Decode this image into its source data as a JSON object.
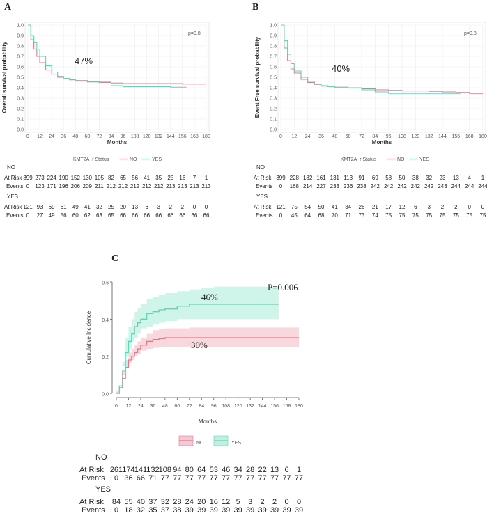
{
  "colors": {
    "no": "#e07b8e",
    "yes": "#5ed6b8",
    "no_fill": "#f6c9d2",
    "yes_fill": "#bff0e1",
    "grid": "#ececec"
  },
  "chart_data": [
    {
      "panel": "A",
      "type": "line",
      "ylabel": "Overall survival probability",
      "xlabel": "Months",
      "pvalue": "p=0.8",
      "annotation": "47%",
      "xlim": [
        0,
        180
      ],
      "ylim": [
        0,
        1
      ],
      "xticks": [
        0,
        12,
        24,
        36,
        48,
        60,
        72,
        84,
        96,
        108,
        120,
        132,
        144,
        156,
        168,
        180
      ],
      "yticks": [
        "0.0",
        "0.1",
        "0.2",
        "0.3",
        "0.4",
        "0.5",
        "0.6",
        "0.7",
        "0.8",
        "0.9",
        "1.0"
      ],
      "legend_title": "KMT2A_r Status",
      "series": [
        {
          "name": "NO",
          "x": [
            0,
            3,
            6,
            9,
            12,
            18,
            24,
            30,
            36,
            42,
            48,
            60,
            72,
            84,
            96,
            108,
            120,
            132,
            144,
            156,
            168,
            180
          ],
          "y": [
            1.0,
            0.86,
            0.77,
            0.7,
            0.64,
            0.57,
            0.53,
            0.5,
            0.485,
            0.475,
            0.465,
            0.455,
            0.45,
            0.445,
            0.44,
            0.44,
            0.44,
            0.44,
            0.44,
            0.435,
            0.435,
            0.435
          ]
        },
        {
          "name": "YES",
          "x": [
            0,
            3,
            6,
            9,
            12,
            18,
            24,
            30,
            36,
            42,
            48,
            60,
            72,
            84,
            96,
            108,
            120,
            132,
            144,
            156,
            160
          ],
          "y": [
            1.0,
            0.9,
            0.83,
            0.77,
            0.7,
            0.61,
            0.55,
            0.51,
            0.49,
            0.48,
            0.47,
            0.46,
            0.455,
            0.42,
            0.41,
            0.41,
            0.41,
            0.41,
            0.405,
            0.405,
            0.405
          ]
        }
      ],
      "risk_table": {
        "groups": [
          {
            "name": "NO",
            "at_risk": [
              "399",
              "273",
              "224",
              "190",
              "152",
              "130",
              "105",
              "82",
              "65",
              "56",
              "41",
              "35",
              "25",
              "16",
              "7",
              "1"
            ],
            "events": [
              "0",
              "123",
              "171",
              "196",
              "206",
              "209",
              "211",
              "212",
              "212",
              "212",
              "212",
              "212",
              "213",
              "213",
              "213",
              "213"
            ]
          },
          {
            "name": "YES",
            "at_risk": [
              "121",
              "93",
              "69",
              "61",
              "49",
              "41",
              "32",
              "25",
              "20",
              "13",
              "6",
              "3",
              "2",
              "2",
              "0",
              "0"
            ],
            "events": [
              "0",
              "27",
              "49",
              "56",
              "60",
              "62",
              "63",
              "65",
              "66",
              "66",
              "66",
              "66",
              "66",
              "66",
              "66",
              "66"
            ]
          }
        ],
        "row_labels": [
          "At Risk",
          "Events"
        ]
      }
    },
    {
      "panel": "B",
      "type": "line",
      "ylabel": "Event Free survival probability",
      "xlabel": "Months",
      "pvalue": "p=0.8",
      "annotation": "40%",
      "xlim": [
        0,
        180
      ],
      "ylim": [
        0,
        1
      ],
      "xticks": [
        0,
        12,
        24,
        36,
        48,
        60,
        72,
        84,
        96,
        108,
        120,
        132,
        144,
        156,
        168,
        180
      ],
      "yticks": [
        "0.0",
        "0.1",
        "0.2",
        "0.3",
        "0.4",
        "0.5",
        "0.6",
        "0.7",
        "0.8",
        "0.9",
        "1.0"
      ],
      "legend_title": "KMT2A_r Status",
      "series": [
        {
          "name": "NO",
          "x": [
            0,
            3,
            6,
            9,
            12,
            18,
            24,
            30,
            36,
            42,
            48,
            60,
            72,
            84,
            96,
            108,
            120,
            132,
            144,
            156,
            168,
            180
          ],
          "y": [
            1.0,
            0.78,
            0.66,
            0.58,
            0.54,
            0.48,
            0.45,
            0.43,
            0.415,
            0.41,
            0.405,
            0.4,
            0.39,
            0.38,
            0.375,
            0.37,
            0.37,
            0.365,
            0.36,
            0.355,
            0.345,
            0.345
          ]
        },
        {
          "name": "YES",
          "x": [
            0,
            3,
            6,
            9,
            12,
            18,
            24,
            30,
            36,
            42,
            48,
            60,
            72,
            84,
            96,
            108,
            120,
            132,
            144,
            156,
            160
          ],
          "y": [
            1.0,
            0.85,
            0.72,
            0.63,
            0.56,
            0.5,
            0.46,
            0.43,
            0.42,
            0.41,
            0.405,
            0.4,
            0.38,
            0.36,
            0.345,
            0.345,
            0.345,
            0.345,
            0.345,
            0.345,
            0.345
          ]
        }
      ],
      "risk_table": {
        "groups": [
          {
            "name": "NO",
            "at_risk": [
              "399",
              "228",
              "182",
              "161",
              "131",
              "113",
              "91",
              "69",
              "58",
              "50",
              "38",
              "32",
              "23",
              "13",
              "4",
              "1"
            ],
            "events": [
              "0",
              "168",
              "214",
              "227",
              "233",
              "236",
              "238",
              "242",
              "242",
              "242",
              "242",
              "242",
              "243",
              "244",
              "244",
              "244"
            ]
          },
          {
            "name": "YES",
            "at_risk": [
              "121",
              "75",
              "54",
              "50",
              "41",
              "34",
              "26",
              "21",
              "17",
              "12",
              "6",
              "3",
              "2",
              "2",
              "0",
              "0"
            ],
            "events": [
              "0",
              "45",
              "64",
              "68",
              "70",
              "71",
              "73",
              "74",
              "75",
              "75",
              "75",
              "75",
              "75",
              "75",
              "75",
              "75"
            ]
          }
        ],
        "row_labels": [
          "At Risk",
          "Events"
        ]
      }
    },
    {
      "panel": "C",
      "type": "line",
      "ylabel": "Cumulative Incidence",
      "xlabel": "Months",
      "pvalue": "P=0.006",
      "annotations": [
        "46%",
        "30%"
      ],
      "xlim": [
        0,
        180
      ],
      "ylim": [
        0,
        0.6
      ],
      "xticks": [
        0,
        12,
        24,
        36,
        48,
        60,
        72,
        84,
        96,
        108,
        120,
        132,
        144,
        156,
        168,
        180
      ],
      "yticks": [
        "0.0",
        "0.2",
        "0.4",
        "0.6"
      ],
      "legend_title": "",
      "series": [
        {
          "name": "NO",
          "x": [
            0,
            3,
            6,
            9,
            12,
            15,
            18,
            21,
            24,
            30,
            36,
            42,
            48,
            60,
            72,
            84,
            96,
            120,
            144,
            168,
            180
          ],
          "y": [
            0,
            0.03,
            0.08,
            0.14,
            0.18,
            0.2,
            0.22,
            0.24,
            0.26,
            0.28,
            0.29,
            0.295,
            0.3,
            0.3,
            0.3,
            0.3,
            0.3,
            0.3,
            0.3,
            0.3,
            0.3
          ],
          "lower": [
            0,
            0.01,
            0.05,
            0.1,
            0.14,
            0.16,
            0.18,
            0.2,
            0.21,
            0.23,
            0.24,
            0.245,
            0.25,
            0.25,
            0.25,
            0.25,
            0.25,
            0.25,
            0.25,
            0.25,
            0.25
          ],
          "upper": [
            0,
            0.05,
            0.11,
            0.18,
            0.22,
            0.24,
            0.26,
            0.28,
            0.3,
            0.32,
            0.34,
            0.345,
            0.35,
            0.35,
            0.355,
            0.355,
            0.355,
            0.355,
            0.355,
            0.355,
            0.355
          ]
        },
        {
          "name": "YES",
          "x": [
            0,
            3,
            6,
            9,
            12,
            15,
            18,
            21,
            24,
            30,
            36,
            42,
            48,
            60,
            72,
            84,
            96,
            120,
            144,
            160
          ],
          "y": [
            0,
            0.04,
            0.12,
            0.22,
            0.28,
            0.32,
            0.36,
            0.38,
            0.4,
            0.43,
            0.44,
            0.45,
            0.455,
            0.47,
            0.48,
            0.48,
            0.48,
            0.48,
            0.48,
            0.48
          ],
          "lower": [
            0,
            0.01,
            0.07,
            0.15,
            0.2,
            0.24,
            0.28,
            0.3,
            0.32,
            0.35,
            0.36,
            0.37,
            0.38,
            0.39,
            0.4,
            0.4,
            0.4,
            0.4,
            0.4,
            0.4
          ],
          "upper": [
            0,
            0.07,
            0.17,
            0.3,
            0.36,
            0.4,
            0.44,
            0.46,
            0.48,
            0.51,
            0.52,
            0.53,
            0.54,
            0.55,
            0.56,
            0.57,
            0.575,
            0.575,
            0.575,
            0.575
          ]
        }
      ],
      "risk_table": {
        "groups": [
          {
            "name": "NO",
            "at_risk": [
              "261",
              "174",
              "141",
              "132",
              "108",
              "94",
              "80",
              "64",
              "53",
              "46",
              "34",
              "28",
              "22",
              "13",
              "6",
              "1"
            ],
            "events": [
              "0",
              "36",
              "66",
              "71",
              "77",
              "77",
              "77",
              "77",
              "77",
              "77",
              "77",
              "77",
              "77",
              "77",
              "77",
              "77"
            ]
          },
          {
            "name": "YES",
            "at_risk": [
              "84",
              "55",
              "40",
              "37",
              "32",
              "28",
              "24",
              "20",
              "16",
              "12",
              "5",
              "3",
              "2",
              "2",
              "0",
              "0"
            ],
            "events": [
              "0",
              "18",
              "32",
              "35",
              "37",
              "38",
              "39",
              "39",
              "39",
              "39",
              "39",
              "39",
              "39",
              "39",
              "39",
              "39"
            ]
          }
        ],
        "row_labels": [
          "At Risk",
          "Events"
        ]
      }
    }
  ]
}
